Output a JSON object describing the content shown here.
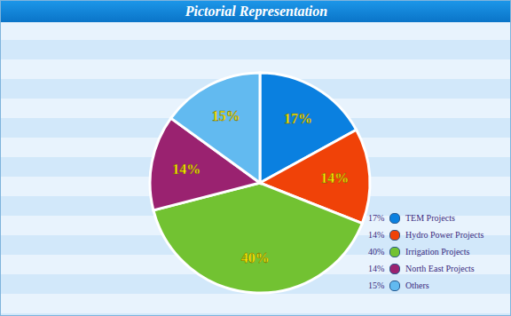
{
  "chart_data": {
    "type": "pie",
    "title": "Pictorial Representation",
    "categories": [
      "TEM Projects",
      "Hydro Power Projects",
      "Irrigation Projects",
      "North East Projects",
      "Others"
    ],
    "values": [
      17,
      14,
      40,
      14,
      15
    ],
    "value_labels": [
      "17%",
      "14%",
      "40%",
      "14%",
      "15%"
    ],
    "colors": [
      "#0a80e0",
      "#f04208",
      "#72c232",
      "#9a2270",
      "#62baf0"
    ],
    "data_labels": true,
    "legend": "lower right"
  }
}
